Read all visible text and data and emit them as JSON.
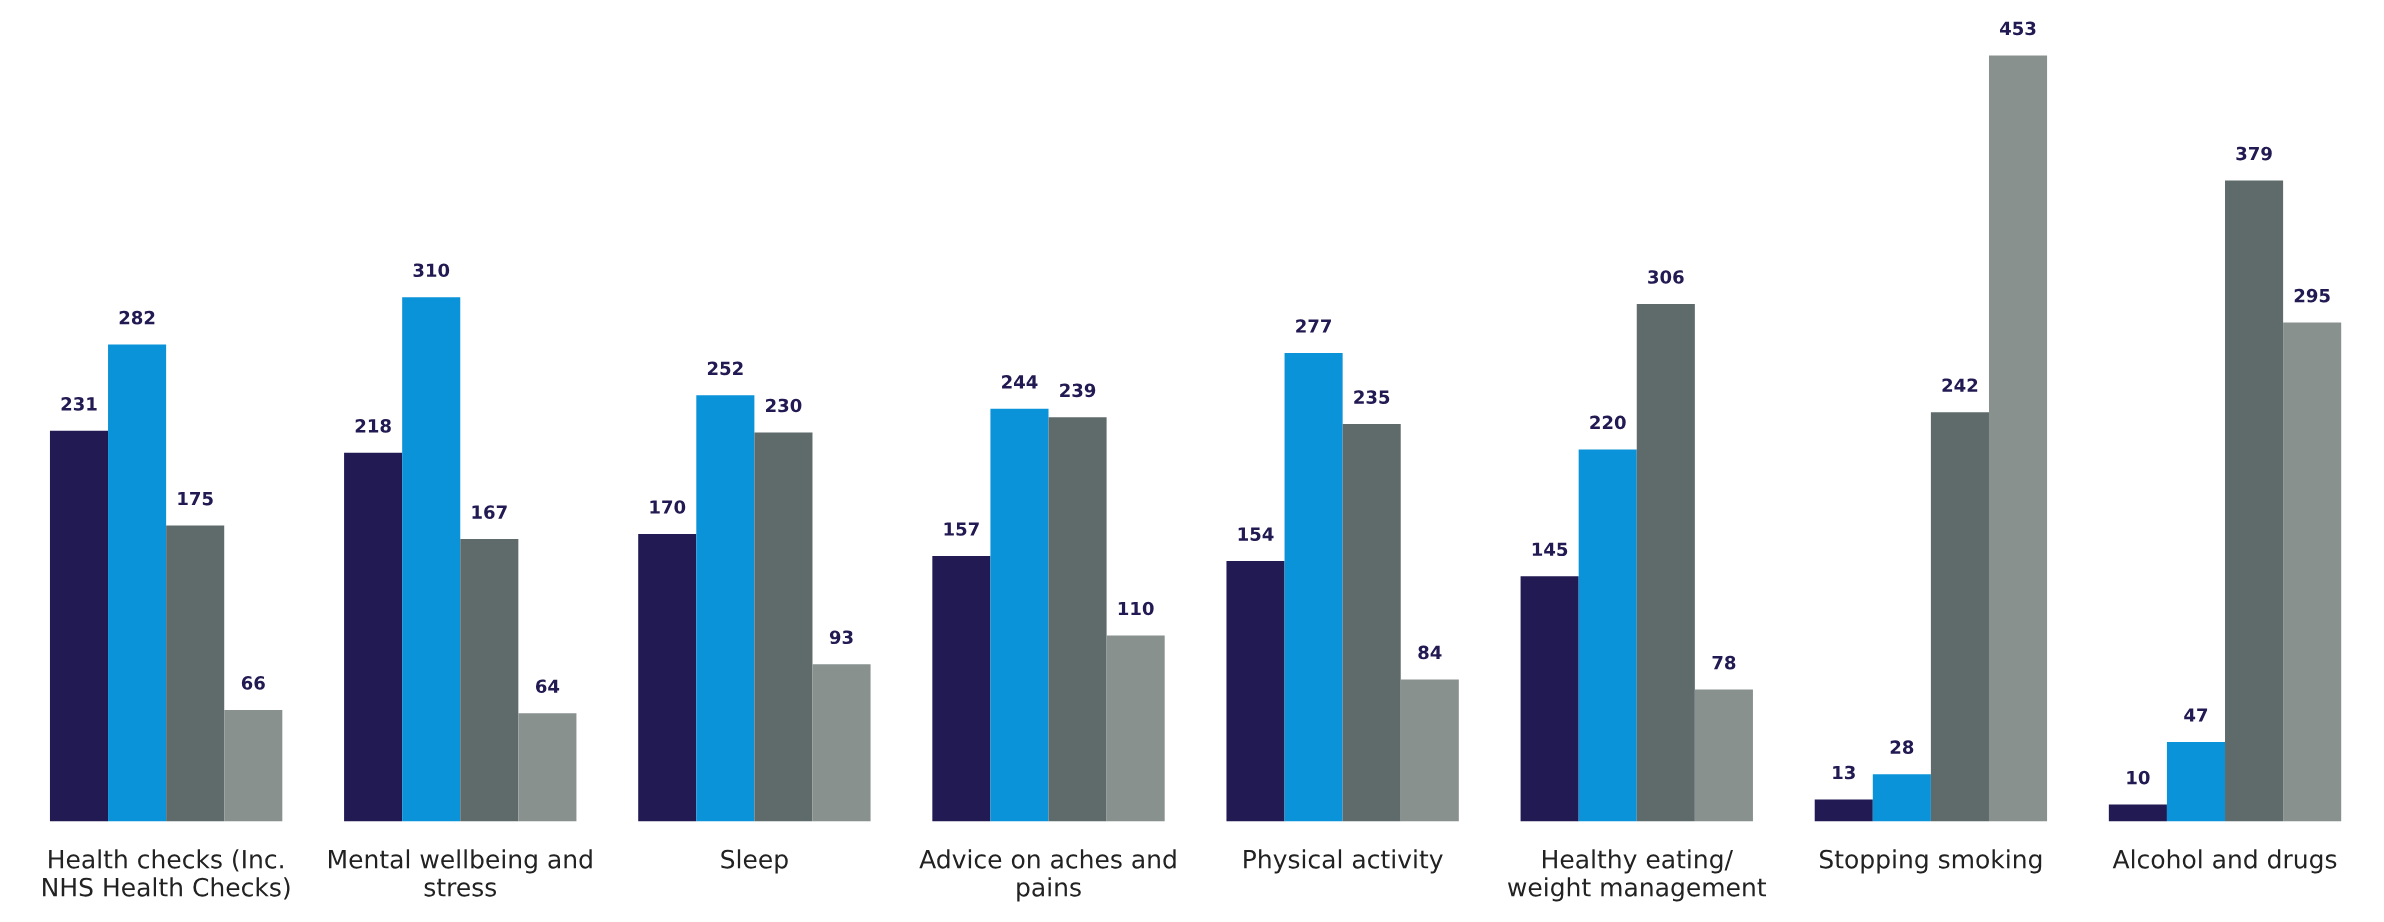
{
  "chart_data": {
    "type": "bar",
    "categories": [
      "Health checks (Inc.\nNHS Health Checks)",
      "Mental wellbeing and\nstress",
      "Sleep",
      "Advice on aches and\npains",
      "Physical activity",
      "Healthy eating/\nweight management",
      "Stopping smoking",
      "Alcohol and drugs"
    ],
    "series": [
      {
        "color": "#221a52",
        "values": [
          231,
          218,
          170,
          157,
          154,
          145,
          13,
          10
        ]
      },
      {
        "color": "#0b93d9",
        "values": [
          282,
          310,
          252,
          244,
          277,
          220,
          28,
          47
        ]
      },
      {
        "color": "#5f6b6b",
        "values": [
          175,
          167,
          230,
          239,
          235,
          306,
          242,
          379
        ]
      },
      {
        "color": "#89918f",
        "values": [
          66,
          64,
          93,
          110,
          84,
          78,
          453,
          295
        ]
      }
    ],
    "data_labels": true,
    "grid": false,
    "legend": false
  }
}
